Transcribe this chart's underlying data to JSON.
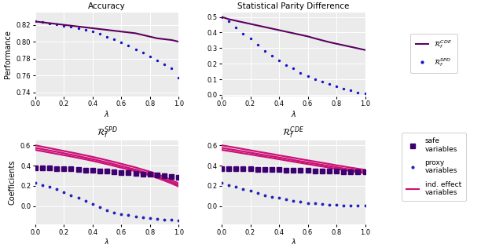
{
  "lambda_values": [
    0.0,
    0.05,
    0.1,
    0.15,
    0.2,
    0.25,
    0.3,
    0.35,
    0.4,
    0.45,
    0.5,
    0.55,
    0.6,
    0.65,
    0.7,
    0.75,
    0.8,
    0.85,
    0.9,
    0.95,
    1.0
  ],
  "acc_CDE": [
    0.824,
    0.823,
    0.822,
    0.821,
    0.82,
    0.819,
    0.818,
    0.817,
    0.816,
    0.815,
    0.814,
    0.813,
    0.812,
    0.811,
    0.81,
    0.808,
    0.806,
    0.804,
    0.803,
    0.802,
    0.8
  ],
  "acc_SPD": [
    0.824,
    0.823,
    0.822,
    0.821,
    0.819,
    0.818,
    0.816,
    0.814,
    0.812,
    0.809,
    0.806,
    0.803,
    0.799,
    0.795,
    0.791,
    0.787,
    0.782,
    0.778,
    0.773,
    0.768,
    0.757
  ],
  "spd_CDE": [
    0.5,
    0.485,
    0.475,
    0.465,
    0.455,
    0.445,
    0.435,
    0.425,
    0.415,
    0.405,
    0.395,
    0.385,
    0.375,
    0.362,
    0.35,
    0.338,
    0.328,
    0.318,
    0.308,
    0.298,
    0.288
  ],
  "spd_SPD": [
    0.5,
    0.47,
    0.43,
    0.39,
    0.36,
    0.32,
    0.28,
    0.25,
    0.22,
    0.19,
    0.17,
    0.14,
    0.12,
    0.1,
    0.085,
    0.07,
    0.055,
    0.04,
    0.03,
    0.015,
    0.008
  ],
  "coef_SPD_safe": [
    0.38,
    0.378,
    0.375,
    0.372,
    0.369,
    0.366,
    0.363,
    0.358,
    0.353,
    0.348,
    0.343,
    0.338,
    0.334,
    0.329,
    0.324,
    0.319,
    0.314,
    0.308,
    0.302,
    0.294,
    0.285
  ],
  "coef_SPD_proxy": [
    0.23,
    0.21,
    0.19,
    0.17,
    0.14,
    0.11,
    0.08,
    0.05,
    0.02,
    -0.01,
    -0.04,
    -0.06,
    -0.08,
    -0.09,
    -0.1,
    -0.11,
    -0.12,
    -0.125,
    -0.13,
    -0.135,
    -0.14
  ],
  "coef_SPD_ind1": [
    0.6,
    0.586,
    0.572,
    0.558,
    0.544,
    0.53,
    0.516,
    0.501,
    0.486,
    0.47,
    0.453,
    0.436,
    0.418,
    0.4,
    0.382,
    0.36,
    0.34,
    0.315,
    0.288,
    0.258,
    0.225
  ],
  "coef_SPD_ind2": [
    0.575,
    0.562,
    0.549,
    0.536,
    0.522,
    0.508,
    0.494,
    0.479,
    0.464,
    0.448,
    0.431,
    0.414,
    0.396,
    0.378,
    0.36,
    0.339,
    0.319,
    0.294,
    0.268,
    0.239,
    0.208
  ],
  "coef_SPD_ind3": [
    0.555,
    0.542,
    0.529,
    0.516,
    0.503,
    0.49,
    0.476,
    0.462,
    0.447,
    0.431,
    0.414,
    0.397,
    0.379,
    0.362,
    0.344,
    0.323,
    0.303,
    0.279,
    0.253,
    0.225,
    0.194
  ],
  "coef_CDE_safe": [
    0.37,
    0.369,
    0.368,
    0.367,
    0.366,
    0.365,
    0.364,
    0.362,
    0.36,
    0.358,
    0.356,
    0.354,
    0.352,
    0.35,
    0.348,
    0.346,
    0.344,
    0.342,
    0.34,
    0.338,
    0.335
  ],
  "coef_CDE_proxy": [
    0.23,
    0.21,
    0.19,
    0.17,
    0.15,
    0.13,
    0.11,
    0.095,
    0.08,
    0.065,
    0.052,
    0.042,
    0.033,
    0.026,
    0.02,
    0.015,
    0.012,
    0.01,
    0.008,
    0.006,
    0.004
  ],
  "coef_CDE_ind1": [
    0.6,
    0.588,
    0.576,
    0.563,
    0.551,
    0.538,
    0.526,
    0.514,
    0.501,
    0.489,
    0.477,
    0.464,
    0.452,
    0.44,
    0.428,
    0.416,
    0.403,
    0.392,
    0.38,
    0.369,
    0.358
  ],
  "coef_CDE_ind2": [
    0.575,
    0.563,
    0.552,
    0.54,
    0.528,
    0.516,
    0.504,
    0.492,
    0.48,
    0.468,
    0.455,
    0.443,
    0.431,
    0.419,
    0.408,
    0.396,
    0.384,
    0.372,
    0.361,
    0.35,
    0.339
  ],
  "coef_CDE_ind3": [
    0.555,
    0.544,
    0.533,
    0.521,
    0.51,
    0.498,
    0.487,
    0.475,
    0.463,
    0.451,
    0.439,
    0.427,
    0.415,
    0.403,
    0.392,
    0.38,
    0.368,
    0.357,
    0.346,
    0.335,
    0.324
  ],
  "color_CDE": "#5c0060",
  "color_SPD": "#1111cc",
  "color_safe": "#3d0070",
  "color_proxy": "#2222bb",
  "color_ind": "#cc1177",
  "bg_color": "#ebebeb",
  "title_acc": "Accuracy",
  "title_spd": "Statistical Parity Difference",
  "title_coef_spd": "$\\mathcal{R}_f^{SPD}$",
  "title_coef_cde": "$\\mathcal{R}_f^{CDE}$",
  "xlabel": "$\\lambda$",
  "ylabel_top": "Performance",
  "ylabel_bot": "Coefficients",
  "legend1_cde": "$\\mathcal{R}_f^{CDE}$",
  "legend1_spd": "$\\mathcal{R}_f^{SPD}$",
  "legend2_safe": "safe\nvariables",
  "legend2_proxy": "proxy\nvariables",
  "legend2_ind": "ind. effect\nvariables",
  "acc_ylim": [
    0.735,
    0.835
  ],
  "spd_ylim": [
    -0.01,
    0.53
  ],
  "coef_ylim": [
    -0.18,
    0.65
  ],
  "coef_yticks": [
    0.0,
    0.2,
    0.4,
    0.6
  ]
}
